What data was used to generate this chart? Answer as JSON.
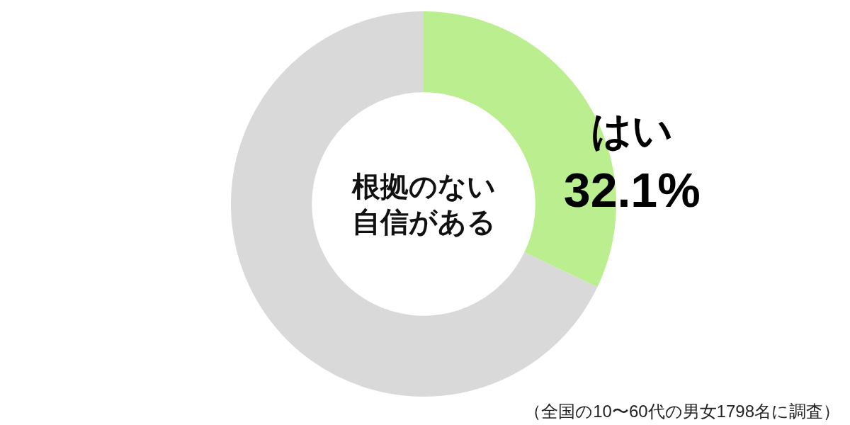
{
  "chart_data": {
    "type": "donut",
    "title": "根拠のない自信がある",
    "categories": [
      "はい",
      null
    ],
    "values": [
      32.1,
      67.9
    ],
    "colors": [
      "#bbee8e",
      "#d9d9d9"
    ],
    "value_labels": [
      "32.1%",
      null
    ],
    "annotations": [
      "（全国の10〜60代の男女1798名に調査）"
    ]
  }
}
